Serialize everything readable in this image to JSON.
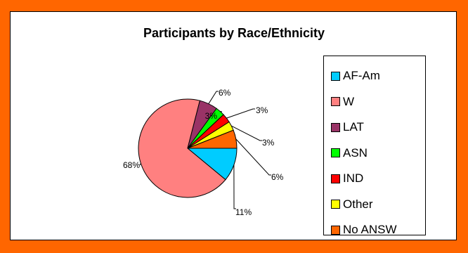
{
  "chart_data": {
    "type": "pie",
    "title": "Participants by Race/Ethnicity",
    "categories": [
      "AF-Am",
      "W",
      "LAT",
      "ASN",
      "IND",
      "Other",
      "No ANSW"
    ],
    "values": [
      11,
      68,
      6,
      3,
      3,
      3,
      6
    ],
    "data_labels": [
      "11%",
      "68%",
      "6%",
      "3%",
      "3%",
      "3%",
      "6%"
    ],
    "colors": [
      "#00ccff",
      "#ff8080",
      "#993366",
      "#00ff00",
      "#ff0000",
      "#ffff00",
      "#ff6600"
    ],
    "legend_position": "right",
    "start_angle_deg": 0,
    "direction": "clockwise"
  },
  "page": {
    "background_color": "#ff6600",
    "plot_background_color": "#ffffff"
  }
}
